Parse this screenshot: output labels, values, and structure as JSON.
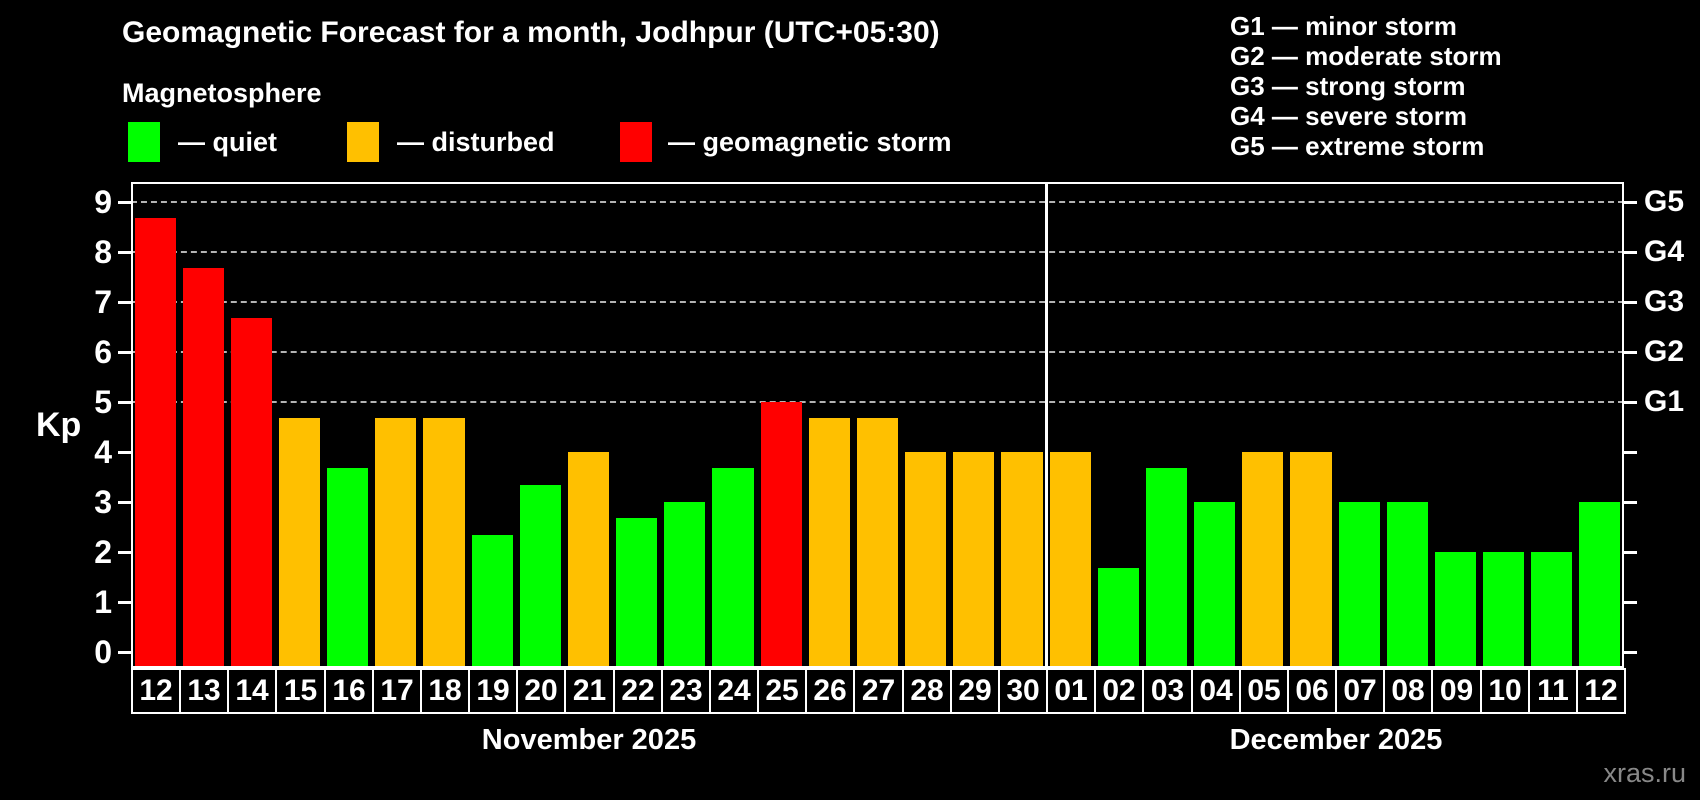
{
  "header": {
    "title": "Geomagnetic Forecast for a month, Jodhpur (UTC+05:30)",
    "subtitle": "Magnetosphere"
  },
  "legend": {
    "items": [
      {
        "name": "quiet",
        "label": "— quiet",
        "color": "#00ff00"
      },
      {
        "name": "disturbed",
        "label": "— disturbed",
        "color": "#ffc000"
      },
      {
        "name": "storm",
        "label": "— geomagnetic storm",
        "color": "#ff0000"
      }
    ]
  },
  "g_legend": {
    "lines": [
      "G1 — minor storm",
      "G2 — moderate storm",
      "G3 — strong storm",
      "G4 — severe storm",
      "G5 — extreme storm"
    ]
  },
  "axes": {
    "y_label": "Kp",
    "y_ticks": [
      0,
      1,
      2,
      3,
      4,
      5,
      6,
      7,
      8,
      9
    ],
    "g_labels": [
      {
        "text": "G1",
        "value": 5
      },
      {
        "text": "G2",
        "value": 6
      },
      {
        "text": "G3",
        "value": 7
      },
      {
        "text": "G4",
        "value": 8
      },
      {
        "text": "G5",
        "value": 9
      }
    ],
    "months": [
      {
        "label": "November 2025"
      },
      {
        "label": "December 2025"
      }
    ]
  },
  "watermark": "xras.ru",
  "chart_data": {
    "type": "bar",
    "title": "Geomagnetic Forecast for a month, Jodhpur (UTC+05:30)",
    "xlabel": "",
    "ylabel": "Kp",
    "ylim": [
      -0.35,
      9.4
    ],
    "gridlines_at": [
      5,
      6,
      7,
      8,
      9
    ],
    "grid": "dashed horizontal at storm levels G1-G5",
    "legend_position": "top",
    "status_colors": {
      "quiet": "#00ff00",
      "disturbed": "#ffc000",
      "storm": "#ff0000"
    },
    "bars": [
      {
        "day": "12",
        "month": "November 2025",
        "value": 8.67,
        "status": "storm"
      },
      {
        "day": "13",
        "month": "November 2025",
        "value": 7.67,
        "status": "storm"
      },
      {
        "day": "14",
        "month": "November 2025",
        "value": 6.67,
        "status": "storm"
      },
      {
        "day": "15",
        "month": "November 2025",
        "value": 4.67,
        "status": "disturbed"
      },
      {
        "day": "16",
        "month": "November 2025",
        "value": 3.67,
        "status": "quiet"
      },
      {
        "day": "17",
        "month": "November 2025",
        "value": 4.67,
        "status": "disturbed"
      },
      {
        "day": "18",
        "month": "November 2025",
        "value": 4.67,
        "status": "disturbed"
      },
      {
        "day": "19",
        "month": "November 2025",
        "value": 2.33,
        "status": "quiet"
      },
      {
        "day": "20",
        "month": "November 2025",
        "value": 3.33,
        "status": "quiet"
      },
      {
        "day": "21",
        "month": "November 2025",
        "value": 4.0,
        "status": "disturbed"
      },
      {
        "day": "22",
        "month": "November 2025",
        "value": 2.67,
        "status": "quiet"
      },
      {
        "day": "23",
        "month": "November 2025",
        "value": 3.0,
        "status": "quiet"
      },
      {
        "day": "24",
        "month": "November 2025",
        "value": 3.67,
        "status": "quiet"
      },
      {
        "day": "25",
        "month": "November 2025",
        "value": 5.0,
        "status": "storm"
      },
      {
        "day": "26",
        "month": "November 2025",
        "value": 4.67,
        "status": "disturbed"
      },
      {
        "day": "27",
        "month": "November 2025",
        "value": 4.67,
        "status": "disturbed"
      },
      {
        "day": "28",
        "month": "November 2025",
        "value": 4.0,
        "status": "disturbed"
      },
      {
        "day": "29",
        "month": "November 2025",
        "value": 4.0,
        "status": "disturbed"
      },
      {
        "day": "30",
        "month": "November 2025",
        "value": 4.0,
        "status": "disturbed"
      },
      {
        "day": "01",
        "month": "December 2025",
        "value": 4.0,
        "status": "disturbed"
      },
      {
        "day": "02",
        "month": "December 2025",
        "value": 1.67,
        "status": "quiet"
      },
      {
        "day": "03",
        "month": "December 2025",
        "value": 3.67,
        "status": "quiet"
      },
      {
        "day": "04",
        "month": "December 2025",
        "value": 3.0,
        "status": "quiet"
      },
      {
        "day": "05",
        "month": "December 2025",
        "value": 4.0,
        "status": "disturbed"
      },
      {
        "day": "06",
        "month": "December 2025",
        "value": 4.0,
        "status": "disturbed"
      },
      {
        "day": "07",
        "month": "December 2025",
        "value": 3.0,
        "status": "quiet"
      },
      {
        "day": "08",
        "month": "December 2025",
        "value": 3.0,
        "status": "quiet"
      },
      {
        "day": "09",
        "month": "December 2025",
        "value": 2.0,
        "status": "quiet"
      },
      {
        "day": "10",
        "month": "December 2025",
        "value": 2.0,
        "status": "quiet"
      },
      {
        "day": "11",
        "month": "December 2025",
        "value": 2.0,
        "status": "quiet"
      },
      {
        "day": "12",
        "month": "December 2025",
        "value": 3.0,
        "status": "quiet"
      }
    ]
  }
}
